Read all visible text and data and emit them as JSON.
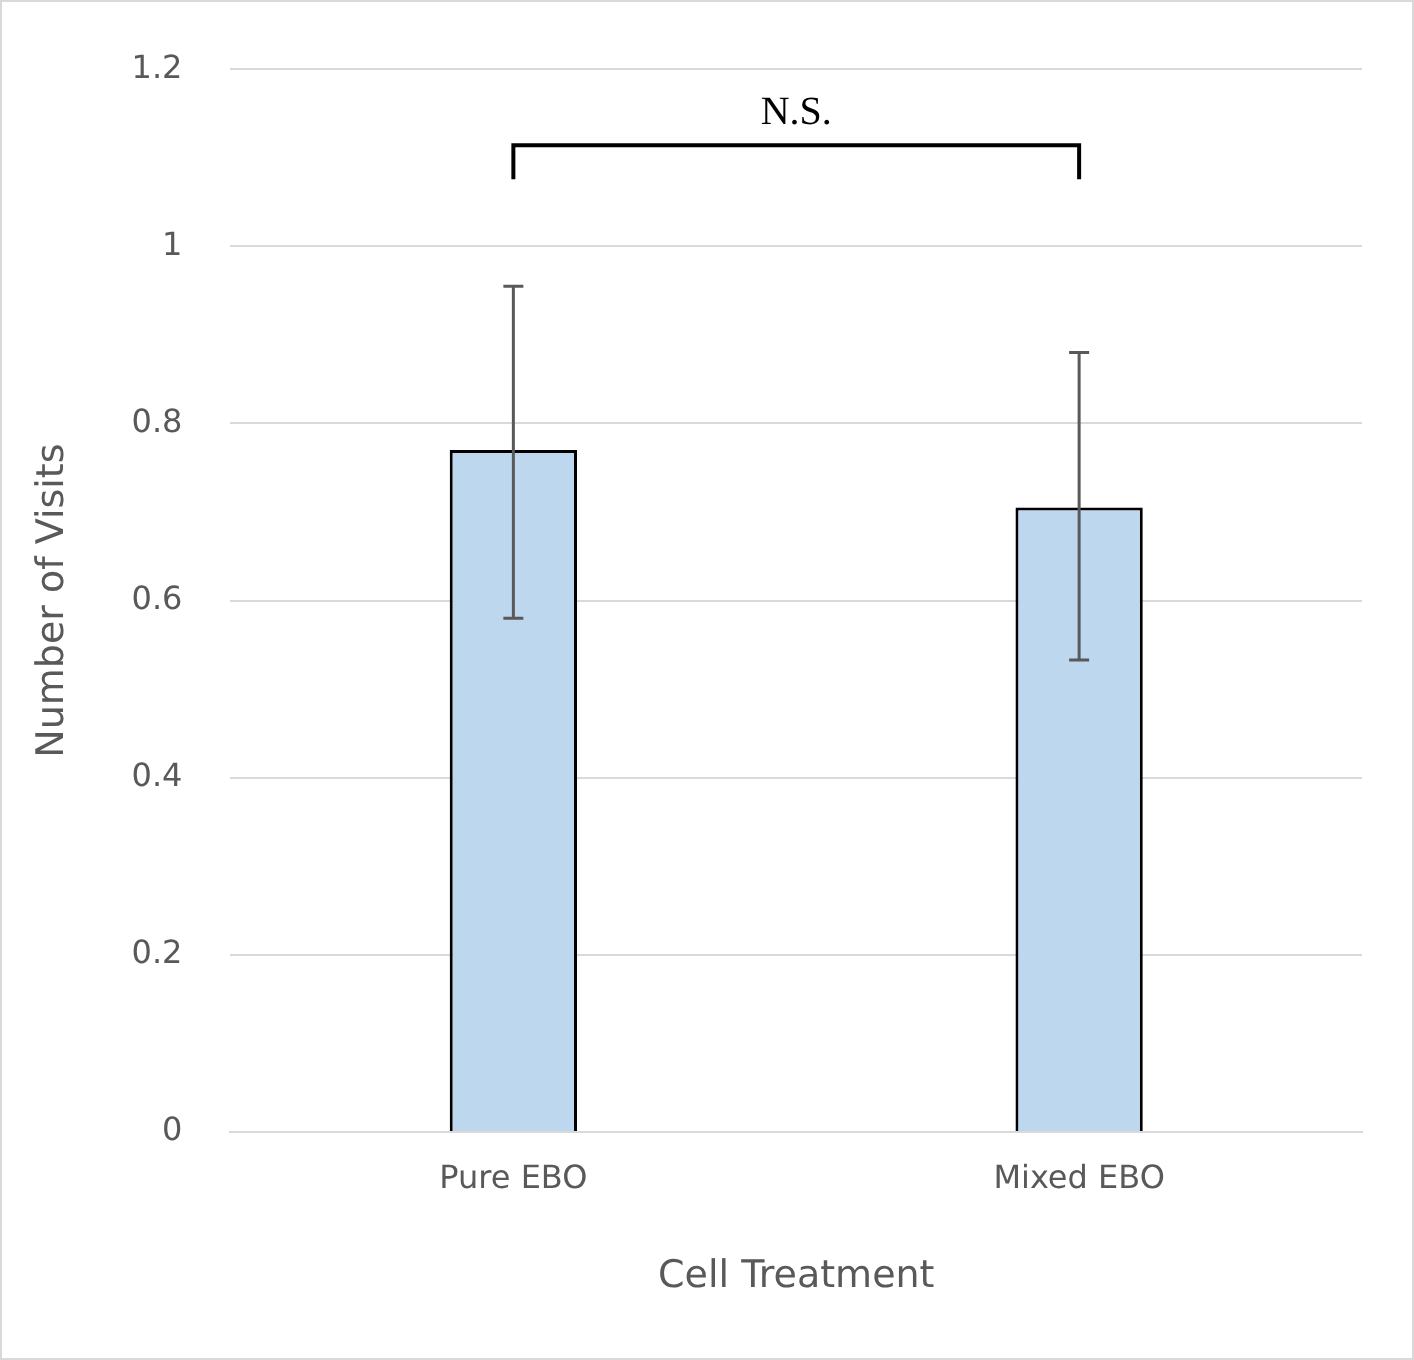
{
  "chart_data": {
    "type": "bar",
    "xlabel": "Cell Treatment",
    "ylabel": "Number of Visits",
    "categories": [
      "Pure EBO",
      "Mixed EBO"
    ],
    "values": [
      0.77,
      0.705
    ],
    "errors": [
      [
        0.58,
        0.955
      ],
      [
        0.533,
        0.88
      ]
    ],
    "color": "#bdd7ee",
    "ylim": [
      0,
      1.2
    ],
    "yticks": [
      0,
      0.2,
      0.4,
      0.6,
      0.8,
      1,
      1.2
    ],
    "grid": "y",
    "legend": false,
    "annotations": [
      "N.S."
    ]
  }
}
